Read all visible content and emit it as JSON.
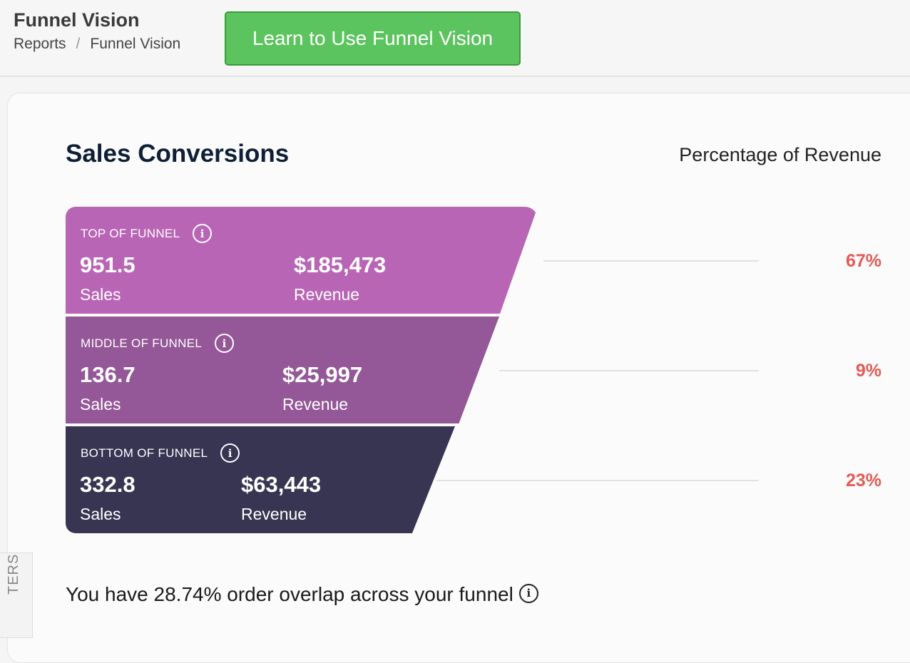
{
  "header": {
    "title": "Funnel Vision",
    "breadcrumb": [
      "Reports",
      "Funnel Vision"
    ],
    "learn_button": "Learn to Use Funnel Vision"
  },
  "section": {
    "title": "Sales Conversions",
    "percentage_heading": "Percentage of Revenue"
  },
  "funnel": [
    {
      "label": "TOP OF FUNNEL",
      "sales": "951.5",
      "sales_label": "Sales",
      "revenue": "$185,473",
      "revenue_label": "Revenue",
      "percent": "67%",
      "color": "#b965b6"
    },
    {
      "label": "MIDDLE OF FUNNEL",
      "sales": "136.7",
      "sales_label": "Sales",
      "revenue": "$25,997",
      "revenue_label": "Revenue",
      "percent": "9%",
      "color": "#945797"
    },
    {
      "label": "BOTTOM OF FUNNEL",
      "sales": "332.8",
      "sales_label": "Sales",
      "revenue": "$63,443",
      "revenue_label": "Revenue",
      "percent": "23%",
      "color": "#383553"
    }
  ],
  "overlap_text": "You have 28.74% order overlap across your funnel",
  "filters_tab": "TERS",
  "colors": {
    "accent_green": "#5cc45e",
    "percent_red": "#e45a55"
  }
}
